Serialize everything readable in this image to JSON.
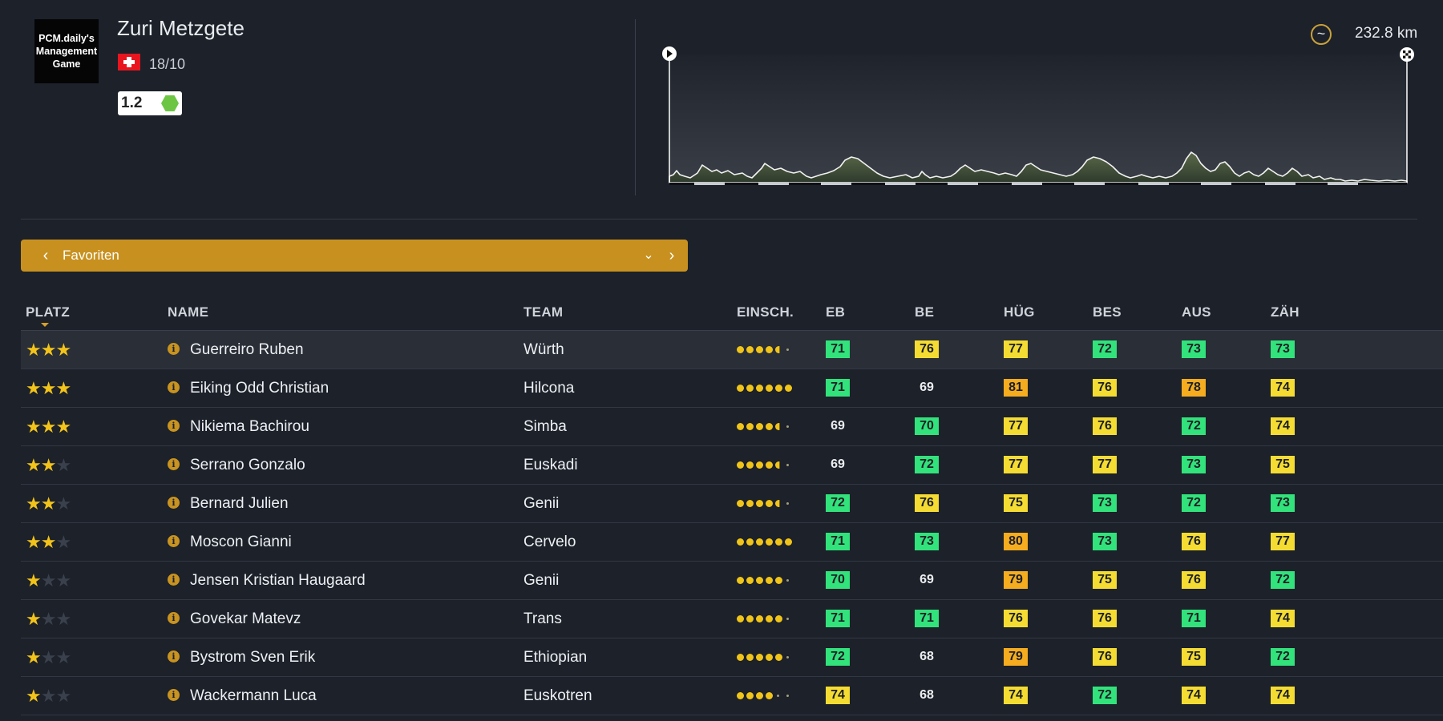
{
  "race": {
    "logo_text": "PCM.daily's\nManagement\nGame",
    "title": "Zuri Metzgete",
    "date": "18/10",
    "category": "1.2",
    "distance": "232.8 km",
    "flag_colors": {
      "red": "#e8151f",
      "white": "#ffffff"
    }
  },
  "selector": {
    "label": "Favoriten",
    "prev_icon": "chevron-left-icon",
    "next_icon": "chevron-right-icon",
    "dropdown_icon": "chevron-down-icon"
  },
  "columns": [
    "PLATZ",
    "NAME",
    "TEAM",
    "EINSCH.",
    "EB",
    "BE",
    "HÜG",
    "BES",
    "AUS",
    "ZÄH"
  ],
  "colors": {
    "green": "#32e27b",
    "yellow": "#f4dc32",
    "orange": "#f5ac1f",
    "accent": "#c8911f"
  },
  "riders": [
    {
      "stars": 3,
      "name": "Guerreiro Ruben",
      "team": "Würth",
      "rating": 4.5,
      "stats": [
        {
          "v": "71",
          "c": "g"
        },
        {
          "v": "76",
          "c": "y"
        },
        {
          "v": "77",
          "c": "y"
        },
        {
          "v": "72",
          "c": "g"
        },
        {
          "v": "73",
          "c": "g"
        },
        {
          "v": "73",
          "c": "g"
        }
      ]
    },
    {
      "stars": 3,
      "name": "Eiking Odd Christian",
      "team": "Hilcona",
      "rating": 6,
      "stats": [
        {
          "v": "71",
          "c": "g"
        },
        {
          "v": "69",
          "c": "n"
        },
        {
          "v": "81",
          "c": "o"
        },
        {
          "v": "76",
          "c": "y"
        },
        {
          "v": "78",
          "c": "o"
        },
        {
          "v": "74",
          "c": "y"
        }
      ]
    },
    {
      "stars": 3,
      "name": "Nikiema Bachirou",
      "team": "Simba",
      "rating": 4.5,
      "stats": [
        {
          "v": "69",
          "c": "n"
        },
        {
          "v": "70",
          "c": "g"
        },
        {
          "v": "77",
          "c": "y"
        },
        {
          "v": "76",
          "c": "y"
        },
        {
          "v": "72",
          "c": "g"
        },
        {
          "v": "74",
          "c": "y"
        }
      ]
    },
    {
      "stars": 2,
      "name": "Serrano Gonzalo",
      "team": "Euskadi",
      "rating": 4.5,
      "stats": [
        {
          "v": "69",
          "c": "n"
        },
        {
          "v": "72",
          "c": "g"
        },
        {
          "v": "77",
          "c": "y"
        },
        {
          "v": "77",
          "c": "y"
        },
        {
          "v": "73",
          "c": "g"
        },
        {
          "v": "75",
          "c": "y"
        }
      ]
    },
    {
      "stars": 2,
      "name": "Bernard Julien",
      "team": "Genii",
      "rating": 4.5,
      "stats": [
        {
          "v": "72",
          "c": "g"
        },
        {
          "v": "76",
          "c": "y"
        },
        {
          "v": "75",
          "c": "y"
        },
        {
          "v": "73",
          "c": "g"
        },
        {
          "v": "72",
          "c": "g"
        },
        {
          "v": "73",
          "c": "g"
        }
      ]
    },
    {
      "stars": 2,
      "name": "Moscon Gianni",
      "team": "Cervelo",
      "rating": 6,
      "stats": [
        {
          "v": "71",
          "c": "g"
        },
        {
          "v": "73",
          "c": "g"
        },
        {
          "v": "80",
          "c": "o"
        },
        {
          "v": "73",
          "c": "g"
        },
        {
          "v": "76",
          "c": "y"
        },
        {
          "v": "77",
          "c": "y"
        }
      ]
    },
    {
      "stars": 1,
      "name": "Jensen Kristian Haugaard",
      "team": "Genii",
      "rating": 5,
      "stats": [
        {
          "v": "70",
          "c": "g"
        },
        {
          "v": "69",
          "c": "n"
        },
        {
          "v": "79",
          "c": "o"
        },
        {
          "v": "75",
          "c": "y"
        },
        {
          "v": "76",
          "c": "y"
        },
        {
          "v": "72",
          "c": "g"
        }
      ]
    },
    {
      "stars": 1,
      "name": "Govekar Matevz",
      "team": "Trans",
      "rating": 5,
      "stats": [
        {
          "v": "71",
          "c": "g"
        },
        {
          "v": "71",
          "c": "g"
        },
        {
          "v": "76",
          "c": "y"
        },
        {
          "v": "76",
          "c": "y"
        },
        {
          "v": "71",
          "c": "g"
        },
        {
          "v": "74",
          "c": "y"
        }
      ]
    },
    {
      "stars": 1,
      "name": "Bystrom Sven Erik",
      "team": "Ethiopian",
      "rating": 5,
      "stats": [
        {
          "v": "72",
          "c": "g"
        },
        {
          "v": "68",
          "c": "n"
        },
        {
          "v": "79",
          "c": "o"
        },
        {
          "v": "76",
          "c": "y"
        },
        {
          "v": "75",
          "c": "y"
        },
        {
          "v": "72",
          "c": "g"
        }
      ]
    },
    {
      "stars": 1,
      "name": "Wackermann Luca",
      "team": "Euskotren",
      "rating": 4,
      "stats": [
        {
          "v": "74",
          "c": "y"
        },
        {
          "v": "68",
          "c": "n"
        },
        {
          "v": "74",
          "c": "y"
        },
        {
          "v": "72",
          "c": "g"
        },
        {
          "v": "74",
          "c": "y"
        },
        {
          "v": "74",
          "c": "y"
        }
      ]
    }
  ]
}
